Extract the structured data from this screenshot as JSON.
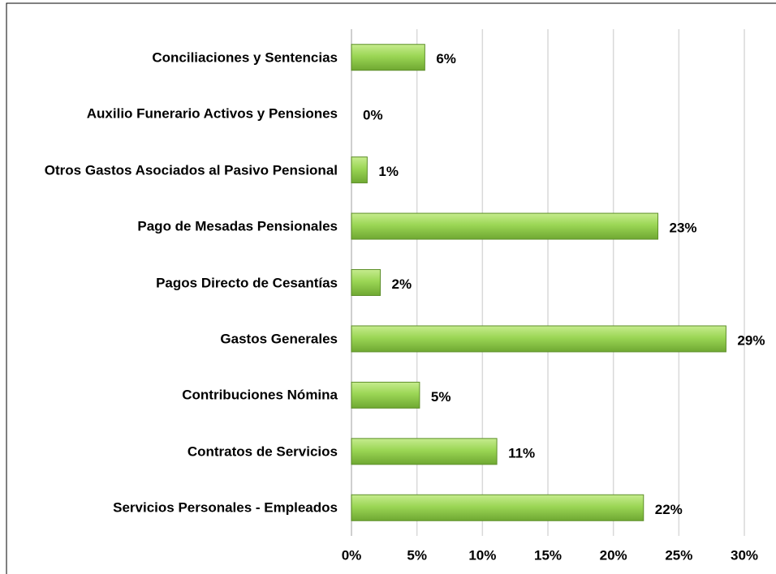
{
  "chart_data": {
    "type": "bar",
    "orientation": "horizontal",
    "categories": [
      "Conciliaciones y Sentencias",
      "Auxilio Funerario Activos y Pensiones",
      "Otros Gastos Asociados al Pasivo Pensional",
      "Pago de Mesadas Pensionales",
      "Pagos Directo de Cesantías",
      "Gastos Generales",
      "Contribuciones Nómina",
      "Contratos de Servicios",
      "Servicios Personales - Empleados"
    ],
    "values": [
      5.6,
      0,
      1.2,
      23.4,
      2.2,
      28.6,
      5.2,
      11.1,
      22.3
    ],
    "value_labels": [
      "6%",
      "0%",
      "1%",
      "23%",
      "2%",
      "29%",
      "5%",
      "11%",
      "22%"
    ],
    "color": "#92d050",
    "xlim": [
      0,
      30
    ],
    "xticks": [
      {
        "value": 0,
        "label": "0%"
      },
      {
        "value": 5,
        "label": "5%"
      },
      {
        "value": 10,
        "label": "10%"
      },
      {
        "value": 15,
        "label": "15%"
      },
      {
        "value": 20,
        "label": "20%"
      },
      {
        "value": 25,
        "label": "25%"
      },
      {
        "value": 30,
        "label": "30%"
      }
    ],
    "grid": true
  }
}
